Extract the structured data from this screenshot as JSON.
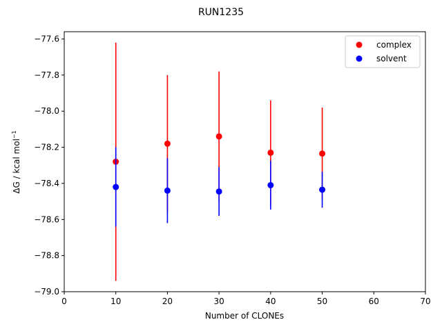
{
  "chart_data": {
    "type": "scatter",
    "title": "RUN1235",
    "xlabel": "Number of CLONEs",
    "ylabel_main": "ΔG / kcal mol",
    "ylabel_sup": "−1",
    "xlim": [
      0,
      70
    ],
    "ylim": [
      -79.0,
      -77.56
    ],
    "x_ticks": [
      0,
      10,
      20,
      30,
      40,
      50,
      60,
      70
    ],
    "y_ticks": [
      -79.0,
      -78.8,
      -78.6,
      -78.4,
      -78.2,
      -78.0,
      -77.8,
      -77.6
    ],
    "x_tick_labels": [
      "0",
      "10",
      "20",
      "30",
      "40",
      "50",
      "60",
      "70"
    ],
    "y_tick_labels": [
      "−79.0",
      "−78.8",
      "−78.6",
      "−78.4",
      "−78.2",
      "−78.0",
      "−77.8",
      "−77.6"
    ],
    "grid": false,
    "legend_placement": "top-right",
    "series": [
      {
        "name": "complex",
        "color": "#ff0000",
        "x": [
          10,
          20,
          30,
          40,
          50
        ],
        "y": [
          -78.28,
          -78.18,
          -78.14,
          -78.23,
          -78.235
        ],
        "yerr": [
          0.66,
          0.38,
          0.36,
          0.29,
          0.255
        ]
      },
      {
        "name": "solvent",
        "color": "#0000ff",
        "x": [
          10,
          20,
          30,
          40,
          50
        ],
        "y": [
          -78.42,
          -78.44,
          -78.445,
          -78.41,
          -78.435
        ],
        "yerr": [
          0.22,
          0.18,
          0.135,
          0.135,
          0.1
        ]
      }
    ]
  }
}
